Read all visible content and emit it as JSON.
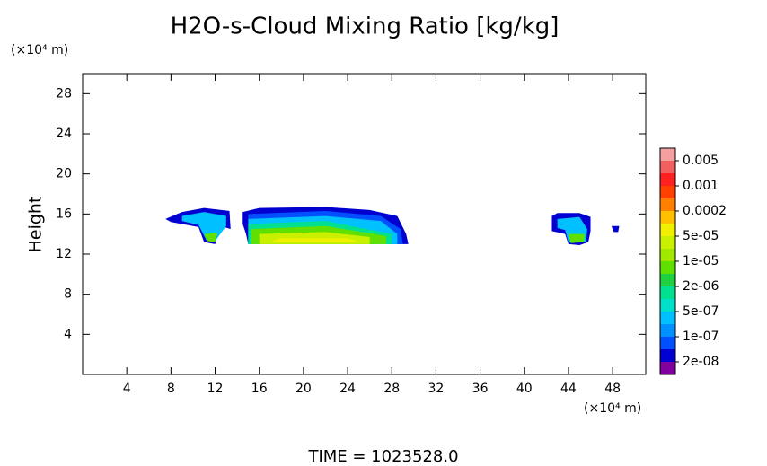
{
  "chart_data": {
    "type": "contour",
    "title": "H2O-s-Cloud Mixing Ratio [kg/kg]",
    "y_unit": "(×10⁴ m)",
    "x_unit": "(×10⁴ m)",
    "y_label": "Height",
    "footer": "TIME = 1023528.0",
    "xlim": [
      0,
      51
    ],
    "ylim": [
      0,
      30
    ],
    "xticks": [
      4,
      8,
      12,
      16,
      20,
      24,
      28,
      32,
      36,
      40,
      44,
      48
    ],
    "yticks": [
      4,
      8,
      12,
      16,
      20,
      24,
      28
    ],
    "colorbar": {
      "colors": [
        "#f5a0a0",
        "#f06060",
        "#ff2020",
        "#ff4000",
        "#ff8000",
        "#ffc000",
        "#f0f000",
        "#c8f000",
        "#a0e800",
        "#60e000",
        "#20d040",
        "#00e090",
        "#00e0c8",
        "#00c0ff",
        "#0090ff",
        "#0050ff",
        "#0000d0",
        "#8000a0"
      ],
      "ticks": [
        0.005,
        0.001,
        0.0002,
        {
          "value": 5e-05,
          "label": "5e-05"
        },
        {
          "value": 1e-05,
          "label": "1e-05"
        },
        {
          "value": 2e-06,
          "label": "2e-06"
        },
        {
          "value": 5e-07,
          "label": "5e-07"
        },
        {
          "value": 1e-07,
          "label": "1e-07"
        },
        {
          "value": 2e-08,
          "label": "2e-08"
        }
      ]
    },
    "regions": [
      {
        "level": 16,
        "x": [
          7.5,
          9,
          11,
          13.3,
          13.4,
          12.5,
          12,
          11,
          10.5,
          8
        ],
        "y": [
          15.5,
          16.2,
          16.6,
          16.3,
          14.5,
          14.8,
          13,
          13.2,
          14.7,
          15.2
        ]
      },
      {
        "level": 13,
        "x": [
          9,
          11,
          13,
          13,
          12,
          11.2,
          10.5,
          9
        ],
        "y": [
          15.8,
          16.2,
          15.8,
          14.8,
          13.3,
          13.4,
          14.9,
          15.3
        ]
      },
      {
        "level": 9,
        "x": [
          11,
          11.3,
          12,
          12.2
        ],
        "y": [
          14,
          13.3,
          13.2,
          14.1
        ]
      },
      {
        "level": 16,
        "x": [
          14.5,
          16,
          22,
          26,
          28.5,
          29.3,
          29.5,
          15,
          14.8,
          14.5
        ],
        "y": [
          16.2,
          16.6,
          16.7,
          16.4,
          15.8,
          14,
          13,
          13,
          14,
          15
        ]
      },
      {
        "level": 15,
        "x": [
          15,
          22,
          27,
          28.8,
          29,
          15,
          15
        ],
        "y": [
          16,
          16.3,
          15.8,
          14.5,
          13,
          13,
          15
        ]
      },
      {
        "level": 13,
        "x": [
          15,
          22,
          27,
          28.5,
          28.5,
          15
        ],
        "y": [
          15.5,
          15.8,
          15.3,
          14,
          13,
          13
        ]
      },
      {
        "level": 11,
        "x": [
          15,
          22,
          28,
          28,
          15
        ],
        "y": [
          15,
          15.3,
          14,
          13,
          13
        ]
      },
      {
        "level": 9,
        "x": [
          15.3,
          22,
          27.5,
          27.5,
          15.3
        ],
        "y": [
          14.5,
          14.8,
          13.8,
          13,
          13
        ]
      },
      {
        "level": 7,
        "x": [
          16,
          22,
          26,
          26,
          16
        ],
        "y": [
          14,
          14.2,
          13.7,
          13,
          13
        ]
      },
      {
        "level": 6,
        "x": [
          18,
          24,
          25,
          17
        ],
        "y": [
          13.6,
          13.6,
          13.2,
          13.2
        ]
      },
      {
        "level": 16,
        "x": [
          42.5,
          43,
          45,
          46,
          46,
          45.8,
          45,
          44,
          43.7,
          42.5
        ],
        "y": [
          15.8,
          16.1,
          16.1,
          15.7,
          14.3,
          13.2,
          12.9,
          13,
          14,
          14.3
        ]
      },
      {
        "level": 13,
        "x": [
          43,
          45,
          45.7,
          45.6,
          44,
          43.7,
          43
        ],
        "y": [
          15.5,
          15.7,
          14.5,
          13.2,
          13.2,
          14.4,
          14.6
        ]
      },
      {
        "level": 9,
        "x": [
          44,
          45.5,
          45.4,
          44.2
        ],
        "y": [
          14,
          14,
          13.2,
          13.1
        ]
      },
      {
        "level": 16,
        "x": [
          47.9,
          48.6,
          48.5,
          48.1
        ],
        "y": [
          14.8,
          14.8,
          14.2,
          14.2
        ]
      }
    ]
  }
}
